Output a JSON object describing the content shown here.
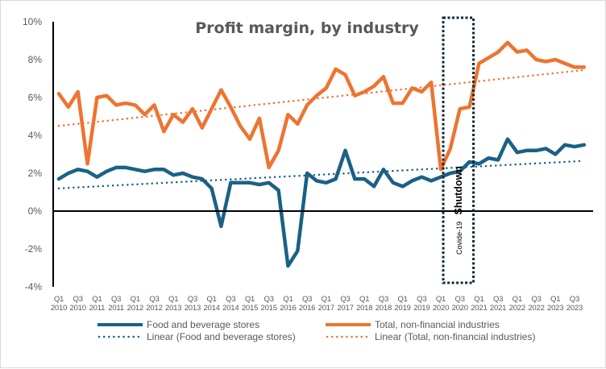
{
  "chart_data": {
    "type": "line",
    "title": "Profit margin, by industry",
    "xlabel": "",
    "ylabel": "",
    "ylim": [
      -4,
      10
    ],
    "yticks": [
      10,
      8,
      6,
      4,
      2,
      0,
      -2,
      -4
    ],
    "ytick_labels": [
      "10%",
      "8%",
      "6%",
      "4%",
      "2%",
      "0%",
      "-2%",
      "-4%"
    ],
    "grid": false,
    "x": [
      "Q1 2010",
      "Q2 2010",
      "Q3 2010",
      "Q4 2010",
      "Q1 2011",
      "Q2 2011",
      "Q3 2011",
      "Q4 2011",
      "Q1 2012",
      "Q2 2012",
      "Q3 2012",
      "Q4 2012",
      "Q1 2013",
      "Q2 2013",
      "Q3 2013",
      "Q4 2013",
      "Q1 2014",
      "Q2 2014",
      "Q3 2014",
      "Q4 2014",
      "Q1 2015",
      "Q2 2015",
      "Q3 2015",
      "Q4 2015",
      "Q1 2016",
      "Q2 2016",
      "Q3 2016",
      "Q4 2016",
      "Q1 2017",
      "Q2 2017",
      "Q3 2017",
      "Q4 2017",
      "Q1 2018",
      "Q2 2018",
      "Q3 2018",
      "Q4 2018",
      "Q1 2019",
      "Q2 2019",
      "Q3 2019",
      "Q4 2019",
      "Q1 2020",
      "Q2 2020",
      "Q3 2020",
      "Q4 2020",
      "Q1 2021",
      "Q2 2021",
      "Q3 2021",
      "Q4 2021",
      "Q1 2022",
      "Q2 2022",
      "Q3 2022",
      "Q4 2022",
      "Q1 2023",
      "Q2 2023",
      "Q3 2023",
      "Q4 2023"
    ],
    "xtick_labels": [
      {
        "q": "Q1",
        "y": "2010"
      },
      {
        "q": "Q3",
        "y": "2010"
      },
      {
        "q": "Q1",
        "y": "2011"
      },
      {
        "q": "Q3",
        "y": "2011"
      },
      {
        "q": "Q1",
        "y": "2012"
      },
      {
        "q": "Q3",
        "y": "2012"
      },
      {
        "q": "Q1",
        "y": "2013"
      },
      {
        "q": "Q3",
        "y": "2013"
      },
      {
        "q": "Q1",
        "y": "2014"
      },
      {
        "q": "Q3",
        "y": "2014"
      },
      {
        "q": "Q1",
        "y": "2015"
      },
      {
        "q": "Q3",
        "y": "2015"
      },
      {
        "q": "Q1",
        "y": "2016"
      },
      {
        "q": "Q3",
        "y": "2016"
      },
      {
        "q": "Q1",
        "y": "2017"
      },
      {
        "q": "Q3",
        "y": "2017"
      },
      {
        "q": "Q1",
        "y": "2018"
      },
      {
        "q": "Q3",
        "y": "2018"
      },
      {
        "q": "Q1",
        "y": "2019"
      },
      {
        "q": "Q3",
        "y": "2019"
      },
      {
        "q": "Q1",
        "y": "2020"
      },
      {
        "q": "Q3",
        "y": "2020"
      },
      {
        "q": "Q1",
        "y": "2021"
      },
      {
        "q": "Q3",
        "y": "2021"
      },
      {
        "q": "Q1",
        "y": "2022"
      },
      {
        "q": "Q3",
        "y": "2022"
      },
      {
        "q": "Q1",
        "y": "2023"
      },
      {
        "q": "Q3",
        "y": "2023"
      }
    ],
    "series": [
      {
        "name": "Food and beverage stores",
        "color": "#1b6185",
        "style": "solid",
        "values": [
          1.7,
          2.0,
          2.2,
          2.1,
          1.8,
          2.1,
          2.3,
          2.3,
          2.2,
          2.1,
          2.2,
          2.2,
          1.9,
          2.0,
          1.8,
          1.7,
          1.2,
          -0.8,
          1.5,
          1.5,
          1.5,
          1.4,
          1.5,
          1.1,
          -2.9,
          -2.1,
          2.0,
          1.6,
          1.5,
          1.7,
          3.2,
          1.7,
          1.7,
          1.3,
          2.2,
          1.5,
          1.3,
          1.6,
          1.8,
          1.6,
          1.8,
          2.0,
          2.1,
          2.6,
          2.5,
          2.8,
          2.7,
          3.8,
          3.1,
          3.2,
          3.2,
          3.3,
          3.0,
          3.5,
          3.4,
          3.5
        ]
      },
      {
        "name": "Total, non-financial industries",
        "color": "#ed7431",
        "style": "solid",
        "values": [
          6.2,
          5.5,
          6.3,
          2.5,
          6.0,
          6.1,
          5.6,
          5.7,
          5.6,
          5.1,
          5.6,
          4.2,
          5.1,
          4.7,
          5.4,
          4.4,
          5.4,
          6.4,
          5.5,
          4.5,
          3.8,
          4.9,
          2.3,
          3.2,
          5.1,
          4.6,
          5.6,
          6.1,
          6.5,
          7.5,
          7.2,
          6.1,
          6.3,
          6.6,
          7.1,
          5.7,
          5.7,
          6.5,
          6.3,
          6.8,
          2.2,
          3.3,
          5.4,
          5.5,
          7.8,
          8.1,
          8.4,
          8.9,
          8.4,
          8.5,
          8.0,
          7.9,
          8.0,
          7.8,
          7.6,
          7.6
        ]
      },
      {
        "name": "Linear (Food and beverage stores)",
        "color": "#1b6185",
        "style": "dotted",
        "trend_of": "Food and beverage stores",
        "start": 1.2,
        "end": 2.65
      },
      {
        "name": "Linear (Total, non-financial industries)",
        "color": "#ed7431",
        "style": "dotted",
        "trend_of": "Total, non-financial industries",
        "start": 4.5,
        "end": 7.45
      }
    ],
    "annotations": [
      {
        "type": "dotted-box",
        "x_start": "Q1 2020",
        "x_end": "Q4 2020",
        "label_small": "Covide-19",
        "label_big": "Shutdown",
        "color": "#0d2a3a"
      }
    ],
    "legend": {
      "placement": "bottom",
      "items": [
        {
          "label": "Food and beverage stores",
          "color": "#1b6185",
          "style": "solid"
        },
        {
          "label": "Total, non-financial industries",
          "color": "#ed7431",
          "style": "solid"
        },
        {
          "label": "Linear (Food and beverage stores)",
          "color": "#1b6185",
          "style": "dotted"
        },
        {
          "label": "Linear (Total, non-financial industries)",
          "color": "#ed7431",
          "style": "dotted"
        }
      ]
    }
  }
}
